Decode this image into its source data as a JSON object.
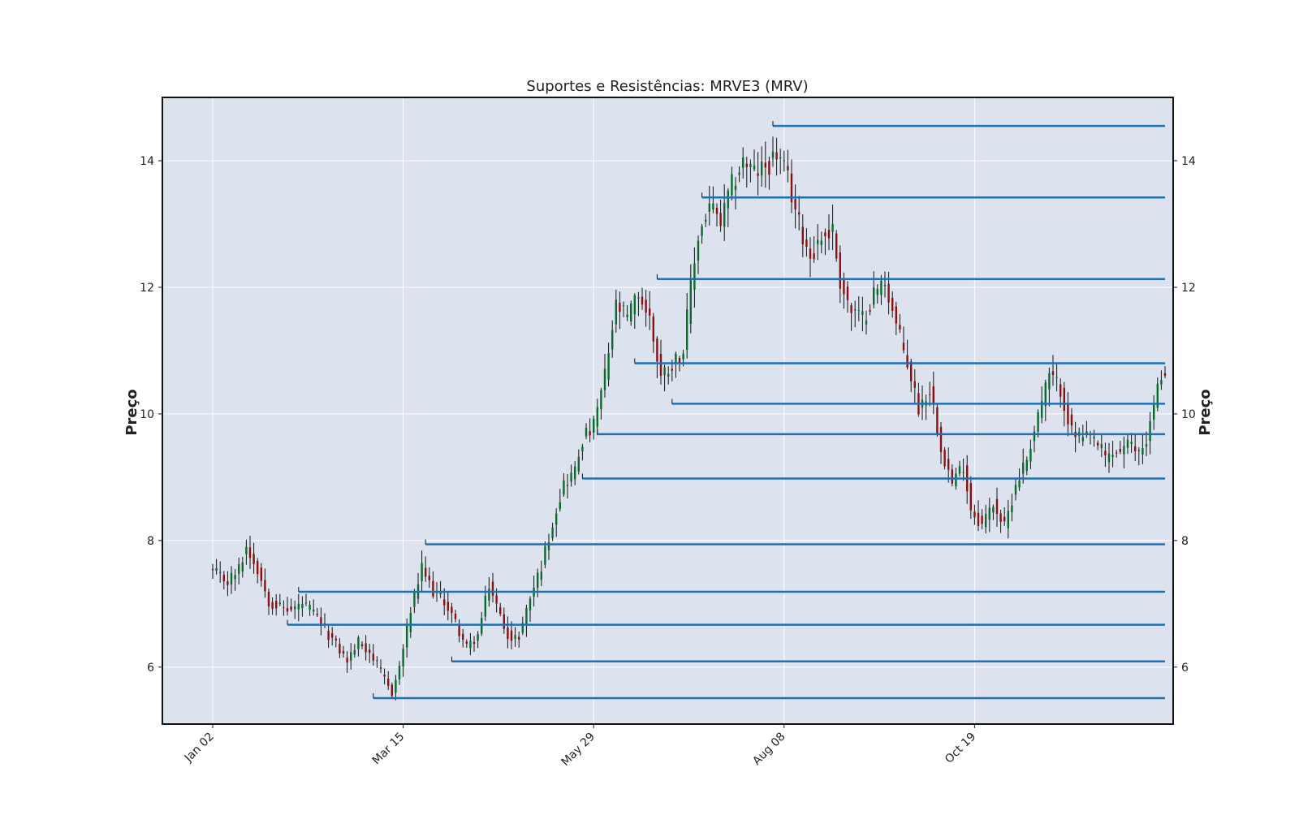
{
  "chart_data": {
    "type": "candlestick",
    "title": "Suportes e Resistências: MRVE3 (MRV)",
    "ylabel_left": "Preço",
    "ylabel_right": "Preço",
    "xlabel": "",
    "ylim": [
      5.1,
      15.0
    ],
    "yticks": [
      6,
      8,
      10,
      12,
      14
    ],
    "grid": true,
    "background_color": "#dde3ee",
    "grid_color": "#ffffff",
    "line_color": "#1f6fb2",
    "up_color": "#0a6b2c",
    "down_color": "#8b0f0f",
    "wick_color": "#111111",
    "x_total_days": 256,
    "x_ticks": [
      {
        "label": "Jan 02",
        "day": 0
      },
      {
        "label": "Mar 15",
        "day": 51
      },
      {
        "label": "May 29",
        "day": 102
      },
      {
        "label": "Aug 08",
        "day": 153
      },
      {
        "label": "Oct 19",
        "day": 204
      }
    ],
    "close_path": [
      [
        0,
        7.5
      ],
      [
        4,
        7.35
      ],
      [
        7,
        7.55
      ],
      [
        9,
        7.9
      ],
      [
        12,
        7.55
      ],
      [
        15,
        7.05
      ],
      [
        18,
        6.95
      ],
      [
        21,
        6.9
      ],
      [
        24,
        7.0
      ],
      [
        27,
        6.85
      ],
      [
        30,
        6.6
      ],
      [
        33,
        6.35
      ],
      [
        36,
        6.1
      ],
      [
        39,
        6.4
      ],
      [
        42,
        6.25
      ],
      [
        45,
        5.9
      ],
      [
        48,
        5.6
      ],
      [
        50,
        6.0
      ],
      [
        53,
        6.9
      ],
      [
        56,
        7.55
      ],
      [
        59,
        7.2
      ],
      [
        62,
        7.05
      ],
      [
        65,
        6.7
      ],
      [
        68,
        6.3
      ],
      [
        71,
        6.5
      ],
      [
        74,
        7.3
      ],
      [
        77,
        6.8
      ],
      [
        80,
        6.4
      ],
      [
        82,
        6.5
      ],
      [
        85,
        7.1
      ],
      [
        88,
        7.6
      ],
      [
        91,
        8.3
      ],
      [
        94,
        8.9
      ],
      [
        97,
        9.1
      ],
      [
        99,
        9.6
      ],
      [
        102,
        9.8
      ],
      [
        105,
        10.6
      ],
      [
        108,
        11.7
      ],
      [
        111,
        11.5
      ],
      [
        114,
        11.9
      ],
      [
        117,
        11.5
      ],
      [
        120,
        10.6
      ],
      [
        123,
        10.8
      ],
      [
        126,
        11.0
      ],
      [
        128,
        12.0
      ],
      [
        130,
        12.8
      ],
      [
        133,
        13.3
      ],
      [
        136,
        13.0
      ],
      [
        139,
        13.6
      ],
      [
        142,
        14.0
      ],
      [
        145,
        13.8
      ],
      [
        148,
        13.9
      ],
      [
        151,
        14.1
      ],
      [
        154,
        13.7
      ],
      [
        157,
        13.0
      ],
      [
        160,
        12.5
      ],
      [
        163,
        12.8
      ],
      [
        166,
        12.9
      ],
      [
        168,
        12.1
      ],
      [
        171,
        11.6
      ],
      [
        174,
        11.5
      ],
      [
        177,
        11.9
      ],
      [
        180,
        12.1
      ],
      [
        183,
        11.4
      ],
      [
        186,
        10.8
      ],
      [
        189,
        10.1
      ],
      [
        192,
        10.4
      ],
      [
        195,
        9.5
      ],
      [
        198,
        8.9
      ],
      [
        201,
        9.2
      ],
      [
        203,
        8.5
      ],
      [
        206,
        8.25
      ],
      [
        209,
        8.6
      ],
      [
        212,
        8.2
      ],
      [
        215,
        8.9
      ],
      [
        218,
        9.3
      ],
      [
        221,
        10.0
      ],
      [
        224,
        10.6
      ],
      [
        227,
        10.4
      ],
      [
        230,
        9.7
      ],
      [
        233,
        9.6
      ],
      [
        236,
        9.6
      ],
      [
        239,
        9.3
      ],
      [
        242,
        9.4
      ],
      [
        245,
        9.5
      ],
      [
        248,
        9.4
      ],
      [
        250,
        9.6
      ],
      [
        253,
        10.4
      ],
      [
        255,
        10.75
      ]
    ],
    "levels": [
      {
        "price": 14.55,
        "start_day": 150,
        "end_day": 255
      },
      {
        "price": 13.42,
        "start_day": 131,
        "end_day": 255
      },
      {
        "price": 12.13,
        "start_day": 119,
        "end_day": 255
      },
      {
        "price": 10.8,
        "start_day": 113,
        "end_day": 255
      },
      {
        "price": 10.16,
        "start_day": 123,
        "end_day": 255
      },
      {
        "price": 9.68,
        "start_day": 103,
        "end_day": 255
      },
      {
        "price": 8.98,
        "start_day": 99,
        "end_day": 255
      },
      {
        "price": 7.94,
        "start_day": 57,
        "end_day": 255
      },
      {
        "price": 7.19,
        "start_day": 23,
        "end_day": 255
      },
      {
        "price": 6.67,
        "start_day": 20,
        "end_day": 255
      },
      {
        "price": 6.09,
        "start_day": 64,
        "end_day": 255
      },
      {
        "price": 5.51,
        "start_day": 43,
        "end_day": 255
      }
    ]
  }
}
